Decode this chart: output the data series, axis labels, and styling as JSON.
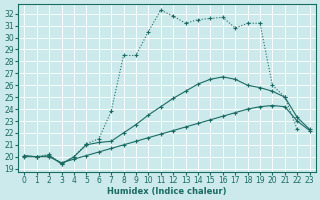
{
  "xlabel": "Humidex (Indice chaleur)",
  "bg_color": "#cce9ec",
  "line_color": "#1a6b62",
  "grid_color": "#b8d8dc",
  "xlim": [
    -0.5,
    23.5
  ],
  "ylim": [
    18.7,
    32.8
  ],
  "xticks": [
    0,
    1,
    2,
    3,
    4,
    5,
    6,
    7,
    8,
    9,
    10,
    11,
    12,
    13,
    14,
    15,
    16,
    17,
    18,
    19,
    20,
    21,
    22,
    23
  ],
  "yticks": [
    19,
    20,
    21,
    22,
    23,
    24,
    25,
    26,
    27,
    28,
    29,
    30,
    31,
    32
  ],
  "line1_x": [
    0,
    1,
    2,
    3,
    4,
    5,
    6,
    7,
    8,
    9,
    10,
    11,
    12,
    13,
    14,
    15,
    16,
    17,
    18,
    19,
    20,
    21,
    22
  ],
  "line1_y": [
    20.1,
    20.0,
    20.2,
    19.4,
    20.0,
    21.1,
    21.5,
    23.8,
    28.5,
    28.5,
    30.5,
    32.3,
    31.8,
    31.2,
    31.5,
    31.6,
    31.7,
    30.8,
    31.2,
    31.2,
    26.0,
    25.0,
    22.3
  ],
  "line2_x": [
    0,
    1,
    2,
    3,
    4,
    5,
    6,
    7,
    8,
    9,
    10,
    11,
    12,
    13,
    14,
    15,
    16,
    17,
    18,
    19,
    20,
    21,
    22,
    23
  ],
  "line2_y": [
    20.1,
    20.0,
    20.1,
    19.4,
    20.0,
    21.0,
    21.2,
    21.3,
    22.0,
    22.7,
    23.5,
    24.2,
    24.9,
    25.5,
    26.1,
    26.5,
    26.7,
    26.5,
    26.0,
    25.8,
    25.5,
    25.0,
    23.3,
    22.3
  ],
  "line3_x": [
    0,
    1,
    2,
    3,
    4,
    5,
    6,
    7,
    8,
    9,
    10,
    11,
    12,
    13,
    14,
    15,
    16,
    17,
    18,
    19,
    20,
    21,
    22,
    23
  ],
  "line3_y": [
    20.0,
    20.0,
    20.0,
    19.5,
    19.8,
    20.1,
    20.4,
    20.7,
    21.0,
    21.3,
    21.6,
    21.9,
    22.2,
    22.5,
    22.8,
    23.1,
    23.4,
    23.7,
    24.0,
    24.2,
    24.3,
    24.2,
    23.0,
    22.2
  ],
  "line1_style": "dotted",
  "line2_style": "solid",
  "line3_style": "solid"
}
